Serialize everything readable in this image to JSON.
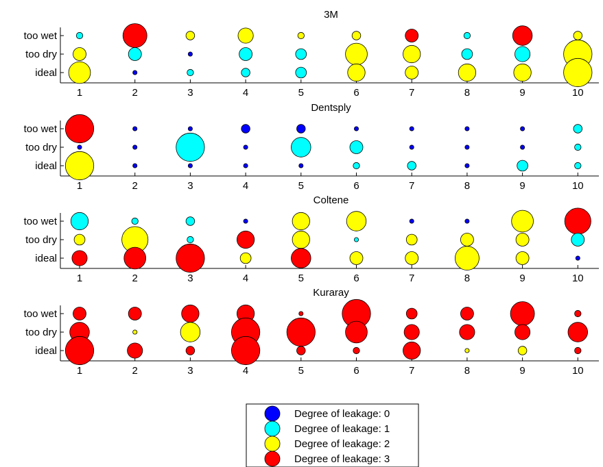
{
  "chart_data": {
    "type": "scatter",
    "x_ticks": [
      "1",
      "2",
      "3",
      "4",
      "5",
      "6",
      "7",
      "8",
      "9",
      "10"
    ],
    "y_categories": [
      "too wet",
      "too dry",
      "ideal"
    ],
    "legend": {
      "placement": "bottom-center",
      "entries": [
        {
          "level": 0,
          "label": "Degree of leakage: 0",
          "color": "#0000ff"
        },
        {
          "level": 1,
          "label": "Degree of leakage: 1",
          "color": "#00ffff"
        },
        {
          "level": 2,
          "label": "Degree of leakage: 2",
          "color": "#ffff00"
        },
        {
          "level": 3,
          "label": "Degree of leakage: 3",
          "color": "#ff0000"
        }
      ]
    },
    "panels": [
      {
        "title": "3M",
        "rows": {
          "too wet": {
            "levels": [
              1,
              3,
              2,
              2,
              2,
              2,
              3,
              1,
              3,
              2
            ],
            "sizes": [
              2,
              10,
              3,
              6,
              2,
              3,
              5,
              2,
              8,
              3
            ]
          },
          "too dry": {
            "levels": [
              2,
              1,
              0,
              1,
              1,
              2,
              2,
              1,
              1,
              2
            ],
            "sizes": [
              5,
              5,
              1,
              5,
              4,
              9,
              7,
              4,
              6,
              12
            ]
          },
          "ideal": {
            "levels": [
              2,
              0,
              1,
              1,
              1,
              2,
              2,
              2,
              2,
              2
            ],
            "sizes": [
              9,
              1,
              2,
              3,
              4,
              7,
              5,
              7,
              7,
              12
            ]
          }
        }
      },
      {
        "title": "Dentsply",
        "rows": {
          "too wet": {
            "levels": [
              3,
              0,
              0,
              0,
              0,
              0,
              0,
              0,
              0,
              1
            ],
            "sizes": [
              12,
              1,
              1,
              3,
              3,
              1,
              1,
              1,
              1,
              3
            ]
          },
          "too dry": {
            "levels": [
              0,
              0,
              1,
              0,
              1,
              1,
              0,
              0,
              0,
              1
            ],
            "sizes": [
              1,
              1,
              12,
              1,
              8,
              5,
              1,
              1,
              1,
              2
            ]
          },
          "ideal": {
            "levels": [
              2,
              0,
              0,
              0,
              0,
              1,
              1,
              0,
              1,
              1
            ],
            "sizes": [
              12,
              1,
              1,
              1,
              1,
              2,
              3,
              1,
              4,
              2
            ]
          }
        }
      },
      {
        "title": "Coltene",
        "rows": {
          "too wet": {
            "levels": [
              1,
              1,
              1,
              0,
              2,
              2,
              0,
              0,
              2,
              3
            ],
            "sizes": [
              7,
              2,
              3,
              1,
              7,
              8,
              1,
              1,
              9,
              11
            ]
          },
          "too dry": {
            "levels": [
              2,
              2,
              1,
              3,
              2,
              1,
              2,
              2,
              2,
              1
            ],
            "sizes": [
              4,
              11,
              2,
              7,
              7,
              1,
              4,
              5,
              5,
              5
            ]
          },
          "ideal": {
            "levels": [
              3,
              3,
              3,
              2,
              3,
              2,
              2,
              2,
              2,
              0
            ],
            "sizes": [
              6,
              9,
              12,
              4,
              8,
              5,
              5,
              10,
              5,
              1
            ]
          }
        }
      },
      {
        "title": "Kuraray",
        "rows": {
          "too wet": {
            "levels": [
              3,
              3,
              3,
              3,
              3,
              3,
              3,
              3,
              3,
              3
            ],
            "sizes": [
              5,
              5,
              7,
              7,
              1,
              12,
              4,
              5,
              10,
              2
            ]
          },
          "too dry": {
            "levels": [
              3,
              2,
              2,
              3,
              3,
              3,
              3,
              3,
              3,
              3
            ],
            "sizes": [
              8,
              1,
              8,
              12,
              12,
              9,
              6,
              6,
              6,
              8
            ]
          },
          "ideal": {
            "levels": [
              3,
              3,
              3,
              3,
              3,
              3,
              3,
              2,
              2,
              3
            ],
            "sizes": [
              12,
              6,
              3,
              12,
              3,
              2,
              7,
              1,
              3,
              2
            ]
          }
        }
      }
    ]
  }
}
